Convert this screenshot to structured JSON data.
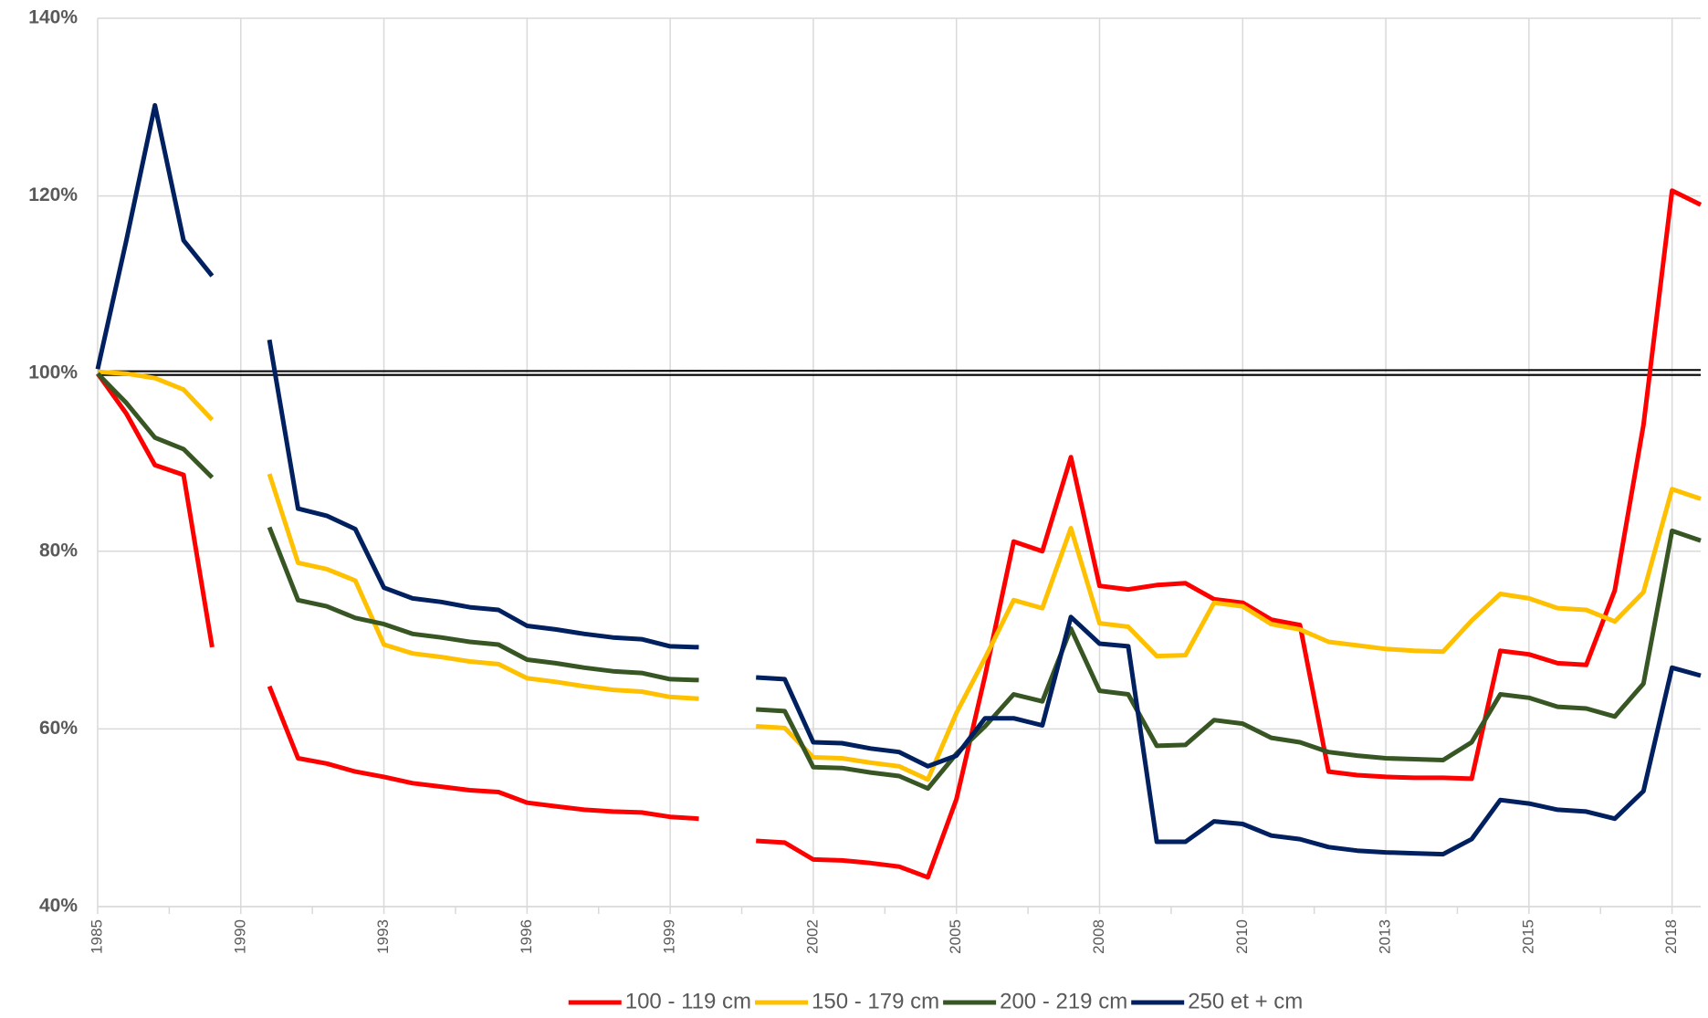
{
  "chart_data": {
    "type": "line",
    "categories": [
      "1985",
      null,
      null,
      null,
      null,
      "1990",
      null,
      null,
      null,
      null,
      "1993",
      null,
      null,
      null,
      null,
      "1996",
      null,
      null,
      null,
      null,
      "1999",
      null,
      null,
      null,
      null,
      "2002",
      null,
      null,
      null,
      null,
      "2005",
      null,
      null,
      null,
      null,
      "2008",
      null,
      null,
      null,
      null,
      "2010",
      null,
      null,
      null,
      null,
      "2013",
      null,
      null,
      null,
      null,
      "2015",
      null,
      null,
      null,
      null,
      "2018",
      null
    ],
    "ylim": [
      40,
      140
    ],
    "yticks": [
      {
        "value": 40,
        "label": "40%"
      },
      {
        "value": 60,
        "label": "60%"
      },
      {
        "value": 80,
        "label": "80%"
      },
      {
        "value": 100,
        "label": "100%"
      },
      {
        "value": 120,
        "label": "120%"
      },
      {
        "value": 140,
        "label": "140%"
      }
    ],
    "grid": true,
    "reference_line": 100,
    "legend": "bottom",
    "series": [
      {
        "name": "100 - 119 cm",
        "color": "#ff0000",
        "values": [
          100,
          95.5,
          89.7,
          88.6,
          69.2,
          null,
          64.8,
          56.7,
          56.1,
          55.2,
          54.6,
          53.9,
          53.5,
          53.1,
          52.9,
          51.7,
          51.3,
          50.9,
          50.7,
          50.6,
          50.1,
          49.9,
          null,
          47.4,
          47.2,
          45.3,
          45.2,
          44.9,
          44.5,
          43.3,
          52.1,
          66.0,
          81.1,
          80.0,
          90.6,
          76.1,
          75.7,
          76.2,
          76.4,
          74.6,
          74.2,
          72.3,
          71.7,
          55.2,
          54.8,
          54.6,
          54.5,
          54.5,
          54.4,
          68.8,
          68.4,
          67.4,
          67.2,
          75.6,
          94.2,
          120.6,
          119.0
        ]
      },
      {
        "name": "150 - 179 cm",
        "color": "#ffc000",
        "values": [
          100.2,
          100,
          99.5,
          98.2,
          94.8,
          null,
          88.7,
          78.7,
          78.0,
          76.7,
          69.5,
          68.5,
          68.1,
          67.6,
          67.3,
          65.7,
          65.3,
          64.8,
          64.4,
          64.2,
          63.6,
          63.4,
          null,
          60.3,
          60.1,
          56.8,
          56.7,
          56.2,
          55.8,
          54.3,
          61.8,
          68.0,
          74.5,
          73.6,
          82.6,
          71.9,
          71.5,
          68.2,
          68.3,
          74.2,
          73.8,
          71.8,
          71.2,
          69.8,
          69.4,
          69.0,
          68.8,
          68.7,
          72.2,
          75.2,
          74.7,
          73.6,
          73.4,
          72.1,
          75.4,
          87.0,
          85.9
        ]
      },
      {
        "name": "200 - 219 cm",
        "color": "#375623",
        "values": [
          100,
          96.7,
          92.8,
          91.5,
          88.3,
          null,
          82.7,
          74.5,
          73.8,
          72.5,
          71.8,
          70.7,
          70.3,
          69.8,
          69.5,
          67.8,
          67.4,
          66.9,
          66.5,
          66.3,
          65.6,
          65.5,
          null,
          62.2,
          62.0,
          55.7,
          55.6,
          55.1,
          54.7,
          53.3,
          57.2,
          60.3,
          63.9,
          63.1,
          71.3,
          64.3,
          63.9,
          58.1,
          58.2,
          61.0,
          60.6,
          59.0,
          58.5,
          57.4,
          57.0,
          56.7,
          56.6,
          56.5,
          58.5,
          63.9,
          63.5,
          62.5,
          62.3,
          61.4,
          65.1,
          82.3,
          81.2
        ]
      },
      {
        "name": "250 et + cm",
        "color": "#002060",
        "values": [
          100.5,
          115,
          130.2,
          115,
          111,
          null,
          103.8,
          84.8,
          84.0,
          82.5,
          75.9,
          74.7,
          74.3,
          73.7,
          73.4,
          71.6,
          71.2,
          70.7,
          70.3,
          70.1,
          69.3,
          69.2,
          null,
          65.8,
          65.6,
          58.5,
          58.4,
          57.8,
          57.4,
          55.8,
          57.0,
          61.2,
          61.2,
          60.4,
          72.6,
          69.6,
          69.3,
          47.3,
          47.3,
          49.6,
          49.3,
          48.0,
          47.6,
          46.7,
          46.3,
          46.1,
          46.0,
          45.9,
          47.6,
          52.0,
          51.6,
          50.9,
          50.7,
          49.9,
          53.0,
          66.9,
          66.0
        ]
      }
    ]
  }
}
